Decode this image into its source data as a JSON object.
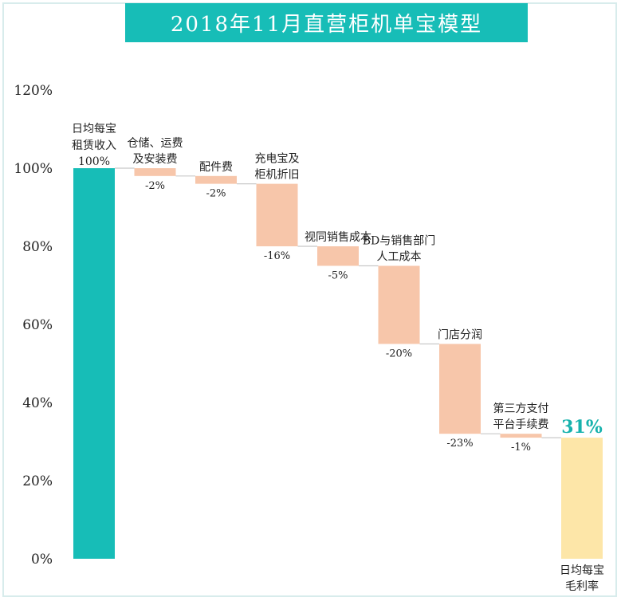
{
  "title": "2018年11月直营柜机单宝模型",
  "colors": {
    "start_bar": "#17bdb7",
    "decrease_bar": "#f7c6aa",
    "end_bar": "#fde6a8",
    "result_label": "#17b2ad",
    "connector": "#c8c8c8",
    "text": "#222222"
  },
  "chart_data": {
    "type": "bar",
    "subtype": "waterfall",
    "title": "2018年11月直营柜机单宝模型",
    "xlabel": "",
    "ylabel": "",
    "ylim": [
      0,
      120
    ],
    "yticks": [
      "0%",
      "20%",
      "40%",
      "60%",
      "80%",
      "100%",
      "120%"
    ],
    "grid": false,
    "steps": [
      {
        "label": [
          "日均每宝",
          "租赁收入"
        ],
        "value": 100,
        "value_label": "100%",
        "kind": "start"
      },
      {
        "label": [
          "仓储、运费",
          "及安装费"
        ],
        "value": -2,
        "value_label": "-2%",
        "kind": "decrease"
      },
      {
        "label": [
          "配件费"
        ],
        "value": -2,
        "value_label": "-2%",
        "kind": "decrease"
      },
      {
        "label": [
          "充电宝及",
          "柜机折旧"
        ],
        "value": -16,
        "value_label": "-16%",
        "kind": "decrease"
      },
      {
        "label": [
          "视同销售成本"
        ],
        "value": -5,
        "value_label": "-5%",
        "kind": "decrease"
      },
      {
        "label": [
          "BD与销售部门",
          "人工成本"
        ],
        "value": -20,
        "value_label": "-20%",
        "kind": "decrease"
      },
      {
        "label": [
          "门店分润"
        ],
        "value": -23,
        "value_label": "-23%",
        "kind": "decrease"
      },
      {
        "label": [
          "第三方支付",
          "平台手续费"
        ],
        "value": -1,
        "value_label": "-1%",
        "kind": "decrease"
      },
      {
        "label": [
          "日均每宝",
          "毛利率"
        ],
        "value": 31,
        "value_label": "31%",
        "kind": "end"
      }
    ]
  }
}
